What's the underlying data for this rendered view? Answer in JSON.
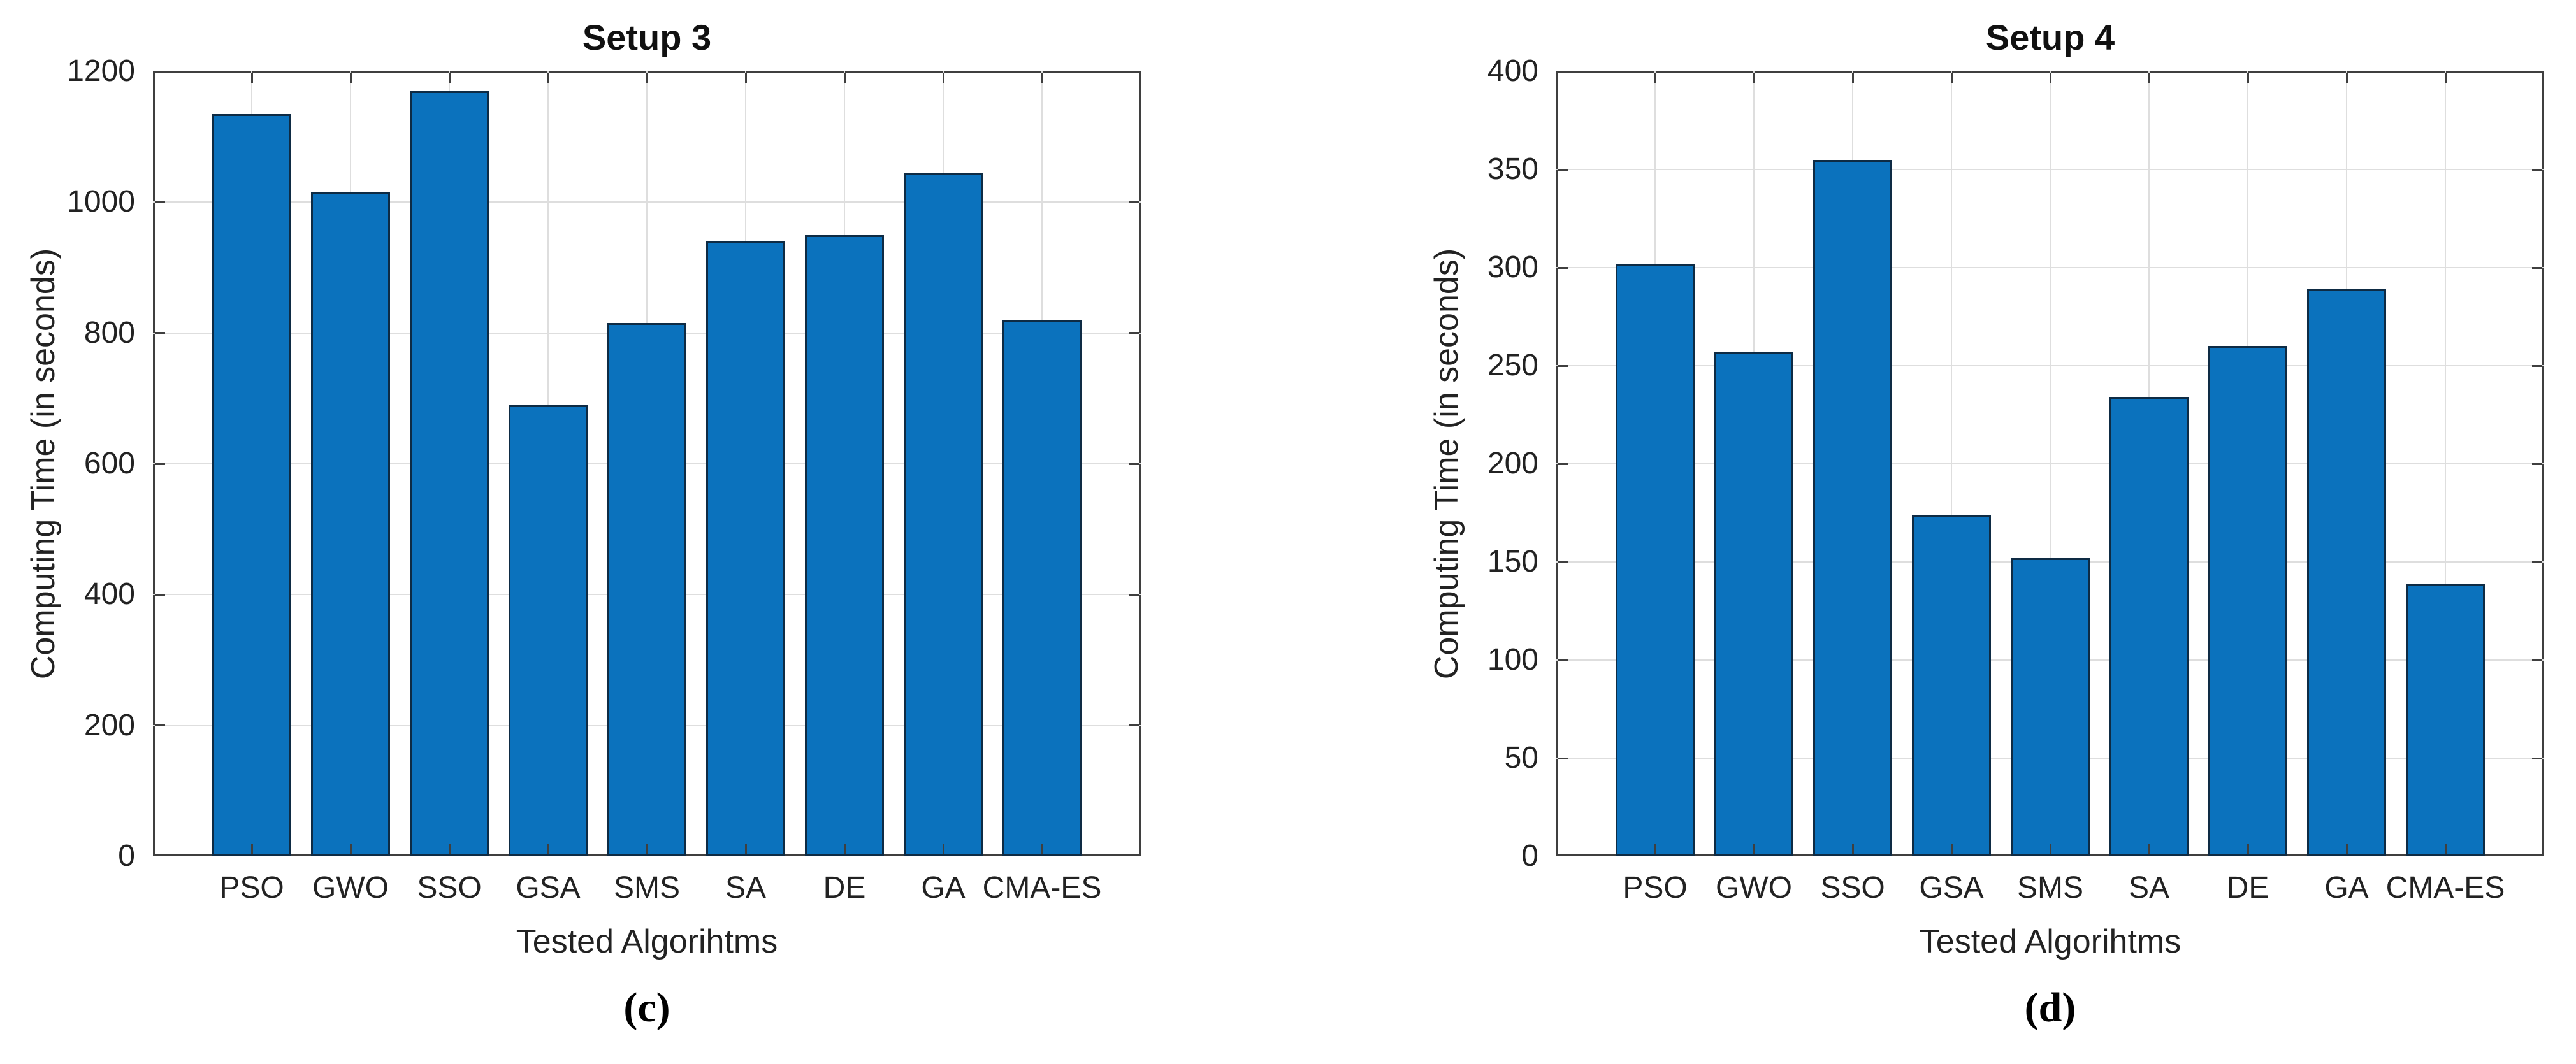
{
  "page": {
    "background": "#ffffff"
  },
  "colors": {
    "bar_fill": "#0b72bd",
    "bar_edge": "#0e2b44",
    "grid": "#dedede",
    "axis": "#3f3f3f",
    "text": "#222222",
    "title_text": "#111111"
  },
  "chart_data": [
    {
      "type": "bar",
      "title": "Setup 3",
      "xlabel": "Tested Algorihtms",
      "ylabel": "Computing Time (in seconds)",
      "caption": "(c)",
      "categories": [
        "PSO",
        "GWO",
        "SSO",
        "GSA",
        "SMS",
        "SA",
        "DE",
        "GA",
        "CMA-ES"
      ],
      "values": [
        1135,
        1015,
        1170,
        690,
        815,
        940,
        950,
        1045,
        820
      ],
      "ylim": [
        0,
        1200
      ],
      "yticks": [
        0,
        200,
        400,
        600,
        800,
        1000,
        1200
      ],
      "grid": true,
      "legend": null
    },
    {
      "type": "bar",
      "title": "Setup 4",
      "xlabel": "Tested Algorihtms",
      "ylabel": "Computing Time (in seconds)",
      "caption": "(d)",
      "categories": [
        "PSO",
        "GWO",
        "SSO",
        "GSA",
        "SMS",
        "SA",
        "DE",
        "GA",
        "CMA-ES"
      ],
      "values": [
        302,
        257,
        355,
        174,
        152,
        234,
        260,
        289,
        139
      ],
      "ylim": [
        0,
        400
      ],
      "yticks": [
        0,
        50,
        100,
        150,
        200,
        250,
        300,
        350,
        400
      ],
      "grid": true,
      "legend": null
    }
  ]
}
